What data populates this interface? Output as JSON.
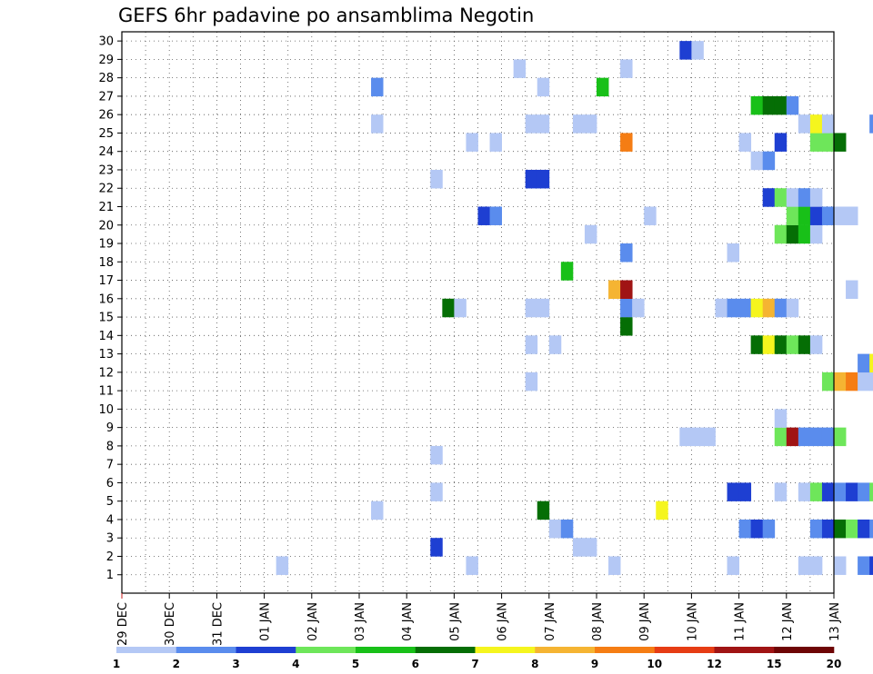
{
  "chart_data": {
    "type": "heatmap",
    "title": "GEFS 6hr padavine po ansamblima Negotin",
    "y_ticks": [
      "1",
      "2",
      "3",
      "4",
      "5",
      "6",
      "7",
      "8",
      "9",
      "10",
      "11",
      "12",
      "13",
      "14",
      "15",
      "16",
      "17",
      "18",
      "19",
      "20",
      "21",
      "22",
      "23",
      "24",
      "25",
      "26",
      "27",
      "28",
      "29",
      "30"
    ],
    "ylim": [
      0,
      30
    ],
    "x_ticks": [
      "29 DEC",
      "30 DEC",
      "31 DEC",
      "01 JAN",
      "02 JAN",
      "03 JAN",
      "04 JAN",
      "05 JAN",
      "06 JAN",
      "07 JAN",
      "08 JAN",
      "09 JAN",
      "10 JAN",
      "11 JAN",
      "12 JAN",
      "13 JAN"
    ],
    "x_step_hours": 6,
    "grid": true,
    "legend": {
      "placement": "bottom",
      "labels": [
        "1",
        "2",
        "3",
        "4",
        "5",
        "6",
        "7",
        "8",
        "9",
        "10",
        "12",
        "15",
        "20"
      ],
      "colors": [
        "#b4c8f5",
        "#5a8ced",
        "#1e3fd2",
        "#6ee65a",
        "#18c018",
        "#056e05",
        "#f5f51e",
        "#f5b432",
        "#f57d14",
        "#e63c14",
        "#a01414",
        "#6e0505"
      ]
    },
    "cells": [
      {
        "m": 1,
        "t": [
          [
            13,
            0
          ],
          [
            29,
            0
          ],
          [
            41,
            0
          ],
          [
            51,
            0
          ],
          [
            57,
            0
          ],
          [
            58,
            0
          ],
          [
            60,
            0
          ],
          [
            62,
            1
          ],
          [
            63,
            2
          ],
          [
            64,
            1
          ],
          [
            65,
            0
          ],
          [
            130,
            0
          ],
          [
            131,
            0
          ]
        ]
      },
      {
        "m": 2,
        "t": [
          [
            26,
            2
          ],
          [
            38,
            0
          ],
          [
            39,
            0
          ],
          [
            75,
            3
          ],
          [
            76,
            5
          ],
          [
            77,
            1
          ]
        ]
      },
      {
        "m": 3,
        "t": [
          [
            36,
            0
          ],
          [
            37,
            1
          ],
          [
            52,
            1
          ],
          [
            53,
            2
          ],
          [
            54,
            1
          ],
          [
            58,
            1
          ],
          [
            59,
            2
          ],
          [
            60,
            5
          ],
          [
            61,
            3
          ],
          [
            62,
            2
          ],
          [
            63,
            1
          ],
          [
            131,
            3
          ]
        ]
      },
      {
        "m": 4,
        "t": [
          [
            21,
            0
          ],
          [
            35,
            5
          ],
          [
            45,
            6
          ],
          [
            136,
            0
          ]
        ]
      },
      {
        "m": 5,
        "t": [
          [
            26,
            0
          ],
          [
            51,
            2
          ],
          [
            52,
            2
          ],
          [
            55,
            0
          ],
          [
            57,
            0
          ],
          [
            58,
            3
          ],
          [
            59,
            2
          ],
          [
            60,
            1
          ],
          [
            61,
            2
          ],
          [
            62,
            1
          ],
          [
            63,
            3
          ],
          [
            64,
            0
          ],
          [
            65,
            1
          ]
        ]
      },
      {
        "m": 7,
        "t": [
          [
            26,
            0
          ],
          [
            69,
            0
          ],
          [
            70,
            0
          ],
          [
            76,
            3
          ],
          [
            77,
            4
          ],
          [
            78,
            4
          ],
          [
            79,
            1
          ]
        ]
      },
      {
        "m": 8,
        "t": [
          [
            47,
            0
          ],
          [
            48,
            0
          ],
          [
            49,
            0
          ],
          [
            55,
            3
          ],
          [
            56,
            10
          ],
          [
            57,
            1
          ],
          [
            58,
            1
          ],
          [
            59,
            1
          ],
          [
            60,
            3
          ],
          [
            77,
            2
          ]
        ]
      },
      {
        "m": 9,
        "t": [
          [
            55,
            0
          ],
          [
            68,
            0
          ]
        ]
      },
      {
        "m": 10,
        "t": [
          [
            75,
            0
          ]
        ]
      },
      {
        "m": 11,
        "t": [
          [
            34,
            0
          ],
          [
            59,
            3
          ],
          [
            60,
            7
          ],
          [
            61,
            8
          ],
          [
            62,
            0
          ],
          [
            63,
            0
          ]
        ]
      },
      {
        "m": 12,
        "t": [
          [
            62,
            1
          ],
          [
            63,
            6
          ],
          [
            65,
            0
          ],
          [
            66,
            1
          ],
          [
            67,
            1
          ],
          [
            68,
            1
          ],
          [
            69,
            0
          ],
          [
            70,
            1
          ]
        ]
      },
      {
        "m": 13,
        "t": [
          [
            34,
            0
          ],
          [
            36,
            0
          ],
          [
            53,
            5
          ],
          [
            54,
            6
          ],
          [
            55,
            5
          ],
          [
            56,
            3
          ],
          [
            57,
            5
          ],
          [
            58,
            0
          ]
        ]
      },
      {
        "m": 14,
        "t": [
          [
            42,
            5
          ]
        ]
      },
      {
        "m": 15,
        "t": [
          [
            27,
            5
          ],
          [
            28,
            0
          ],
          [
            34,
            0
          ],
          [
            35,
            0
          ],
          [
            42,
            1
          ],
          [
            43,
            0
          ],
          [
            50,
            0
          ],
          [
            51,
            1
          ],
          [
            52,
            1
          ],
          [
            53,
            6
          ],
          [
            54,
            7
          ],
          [
            55,
            1
          ],
          [
            56,
            0
          ]
        ]
      },
      {
        "m": 16,
        "t": [
          [
            41,
            7
          ],
          [
            42,
            10
          ],
          [
            61,
            0
          ]
        ]
      },
      {
        "m": 17,
        "t": [
          [
            37,
            4
          ]
        ]
      },
      {
        "m": 18,
        "t": [
          [
            42,
            1
          ],
          [
            51,
            0
          ],
          [
            71,
            1
          ],
          [
            72,
            4
          ],
          [
            73,
            5
          ],
          [
            74,
            9
          ],
          [
            75,
            7
          ],
          [
            76,
            3
          ],
          [
            77,
            1
          ],
          [
            78,
            3
          ],
          [
            79,
            4
          ],
          [
            80,
            2
          ],
          [
            81,
            4
          ],
          [
            82,
            5
          ],
          [
            83,
            11
          ],
          [
            84,
            1
          ]
        ]
      },
      {
        "m": 19,
        "t": [
          [
            39,
            0
          ],
          [
            55,
            3
          ],
          [
            56,
            5
          ],
          [
            57,
            4
          ],
          [
            58,
            0
          ]
        ]
      },
      {
        "m": 20,
        "t": [
          [
            30,
            2
          ],
          [
            31,
            1
          ],
          [
            44,
            0
          ],
          [
            56,
            3
          ],
          [
            57,
            4
          ],
          [
            58,
            2
          ],
          [
            59,
            1
          ],
          [
            60,
            0
          ],
          [
            61,
            0
          ]
        ]
      },
      {
        "m": 21,
        "t": [
          [
            54,
            2
          ],
          [
            55,
            3
          ],
          [
            56,
            0
          ],
          [
            57,
            1
          ],
          [
            58,
            0
          ]
        ]
      },
      {
        "m": 22,
        "t": [
          [
            26,
            0
          ],
          [
            34,
            2
          ],
          [
            35,
            2
          ],
          [
            69,
            6
          ]
        ]
      },
      {
        "m": 23,
        "t": [
          [
            53,
            0
          ],
          [
            54,
            1
          ]
        ]
      },
      {
        "m": 24,
        "t": [
          [
            29,
            0
          ],
          [
            31,
            0
          ],
          [
            42,
            8
          ],
          [
            52,
            0
          ],
          [
            55,
            2
          ],
          [
            58,
            3
          ],
          [
            59,
            3
          ],
          [
            60,
            5
          ],
          [
            75,
            0
          ],
          [
            76,
            0
          ],
          [
            77,
            2
          ],
          [
            78,
            1
          ],
          [
            79,
            2
          ]
        ]
      },
      {
        "m": 25,
        "t": [
          [
            21,
            0
          ],
          [
            34,
            0
          ],
          [
            35,
            0
          ],
          [
            38,
            0
          ],
          [
            39,
            0
          ],
          [
            57,
            0
          ],
          [
            58,
            6
          ],
          [
            59,
            0
          ],
          [
            63,
            1
          ],
          [
            64,
            6
          ],
          [
            65,
            5
          ],
          [
            66,
            5
          ],
          [
            67,
            5
          ],
          [
            68,
            3
          ],
          [
            69,
            5
          ],
          [
            70,
            6
          ],
          [
            71,
            7
          ],
          [
            72,
            3
          ],
          [
            73,
            1
          ],
          [
            74,
            2
          ],
          [
            75,
            0
          ],
          [
            76,
            0
          ],
          [
            77,
            0
          ]
        ]
      },
      {
        "m": 26,
        "t": [
          [
            53,
            4
          ],
          [
            54,
            5
          ],
          [
            55,
            5
          ],
          [
            56,
            1
          ]
        ]
      },
      {
        "m": 27,
        "t": [
          [
            21,
            1
          ],
          [
            35,
            0
          ],
          [
            40,
            4
          ],
          [
            82,
            4
          ],
          [
            83,
            3
          ]
        ]
      },
      {
        "m": 28,
        "t": [
          [
            33,
            0
          ],
          [
            42,
            0
          ],
          [
            80,
            0
          ],
          [
            81,
            2
          ],
          [
            82,
            2
          ],
          [
            83,
            0
          ]
        ]
      },
      {
        "m": 29,
        "t": [
          [
            47,
            2
          ],
          [
            48,
            0
          ],
          [
            76,
            2
          ]
        ]
      }
    ]
  }
}
